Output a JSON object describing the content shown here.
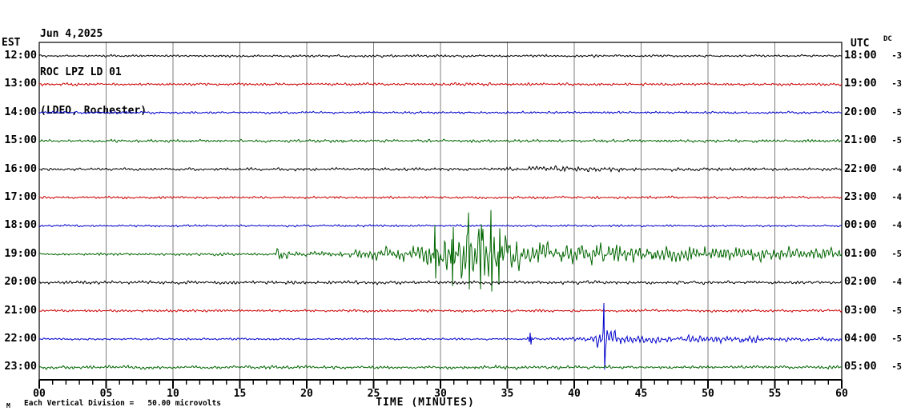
{
  "header": {
    "date": "Jun 4,2025",
    "station": "ROC LPZ LD 01",
    "location": "(LDEO, Rochester)"
  },
  "axes": {
    "left_label": "EST",
    "right_label": "UTC",
    "dc_label": "DC",
    "xlabel": "TIME (MINUTES)"
  },
  "footer": {
    "corner_mark": "M",
    "scale_note": "Each Vertical Division =   50.00 microvolts"
  },
  "colors": {
    "black": "#000000",
    "red": "#cc0000",
    "blue": "#0000cc",
    "green": "#006600",
    "grid": "#7d7d7d",
    "border": "#000000",
    "background": "#ffffff"
  },
  "chart_data": {
    "type": "line",
    "title": "ROC LPZ LD 01 helicorder, Jun 4,2025",
    "xlabel": "TIME (MINUTES)",
    "x_range_minutes": [
      0,
      60
    ],
    "grid_interval_minutes": 5,
    "minor_tick_minutes": 1,
    "tick_major_labels": [
      "00",
      "05",
      "10",
      "15",
      "20",
      "25",
      "30",
      "35",
      "40",
      "45",
      "50",
      "55",
      "60"
    ],
    "vertical_division_microvolts": 50.0,
    "traces": [
      {
        "est": "12:00",
        "utc": "18:00",
        "dc": "-3",
        "color": "black",
        "seed": 11,
        "envelope": [
          [
            0,
            1.8
          ],
          [
            60,
            1.8
          ]
        ],
        "spikes": []
      },
      {
        "est": "13:00",
        "utc": "19:00",
        "dc": "-3",
        "color": "red",
        "seed": 23,
        "envelope": [
          [
            0,
            2.0
          ],
          [
            60,
            2.0
          ]
        ],
        "spikes": []
      },
      {
        "est": "14:00",
        "utc": "20:00",
        "dc": "-5",
        "color": "blue",
        "seed": 37,
        "envelope": [
          [
            0,
            1.7
          ],
          [
            60,
            1.7
          ]
        ],
        "spikes": []
      },
      {
        "est": "15:00",
        "utc": "21:00",
        "dc": "-5",
        "color": "green",
        "seed": 41,
        "envelope": [
          [
            0,
            2.1
          ],
          [
            60,
            2.1
          ]
        ],
        "spikes": []
      },
      {
        "est": "16:00",
        "utc": "22:00",
        "dc": "-4",
        "color": "black",
        "seed": 53,
        "envelope": [
          [
            0,
            1.9
          ],
          [
            34,
            2.2
          ],
          [
            36,
            3.2
          ],
          [
            37.5,
            4.4
          ],
          [
            39,
            4.6
          ],
          [
            40,
            3.8
          ],
          [
            42,
            3.4
          ],
          [
            44,
            3.0
          ],
          [
            46,
            2.6
          ],
          [
            50,
            2.2
          ],
          [
            60,
            2.0
          ]
        ],
        "spikes": []
      },
      {
        "est": "17:00",
        "utc": "23:00",
        "dc": "-4",
        "color": "red",
        "seed": 67,
        "envelope": [
          [
            0,
            1.9
          ],
          [
            60,
            1.9
          ]
        ],
        "spikes": []
      },
      {
        "est": "18:00",
        "utc": "00:00",
        "dc": "-4",
        "color": "blue",
        "seed": 79,
        "envelope": [
          [
            0,
            1.6
          ],
          [
            60,
            1.6
          ]
        ],
        "spikes": []
      },
      {
        "est": "19:00",
        "utc": "01:00",
        "dc": "-5",
        "color": "green",
        "seed": 97,
        "envelope": [
          [
            0,
            2.0
          ],
          [
            17.5,
            2.0
          ],
          [
            17.8,
            8
          ],
          [
            18.3,
            11
          ],
          [
            18.8,
            6
          ],
          [
            19.5,
            4
          ],
          [
            21,
            3.5
          ],
          [
            23,
            4.5
          ],
          [
            24,
            6
          ],
          [
            25,
            8
          ],
          [
            26,
            9
          ],
          [
            27,
            10
          ],
          [
            28,
            13
          ],
          [
            29,
            17
          ],
          [
            29.8,
            26
          ],
          [
            30.5,
            32
          ],
          [
            31.5,
            36
          ],
          [
            32.2,
            42
          ],
          [
            33,
            40
          ],
          [
            33.7,
            45
          ],
          [
            34.2,
            34
          ],
          [
            35,
            24
          ],
          [
            36,
            20
          ],
          [
            37,
            19
          ],
          [
            38,
            17
          ],
          [
            39,
            16
          ],
          [
            40,
            15
          ],
          [
            42,
            16
          ],
          [
            43,
            14
          ],
          [
            45,
            13
          ],
          [
            47,
            12
          ],
          [
            50,
            13
          ],
          [
            52,
            11
          ],
          [
            55,
            10
          ],
          [
            58,
            9
          ],
          [
            60,
            9
          ]
        ],
        "spikes": [
          [
            29.6,
            36
          ],
          [
            30.9,
            -40
          ],
          [
            32.1,
            52
          ],
          [
            33.0,
            -44
          ],
          [
            33.8,
            55
          ],
          [
            34.4,
            -38
          ]
        ]
      },
      {
        "est": "20:00",
        "utc": "02:00",
        "dc": "-4",
        "color": "black",
        "seed": 101,
        "envelope": [
          [
            0,
            2.6
          ],
          [
            10,
            2.4
          ],
          [
            20,
            2.6
          ],
          [
            30,
            2.5
          ],
          [
            40,
            2.4
          ],
          [
            50,
            2.3
          ],
          [
            60,
            2.2
          ]
        ],
        "spikes": []
      },
      {
        "est": "21:00",
        "utc": "03:00",
        "dc": "-5",
        "color": "red",
        "seed": 113,
        "envelope": [
          [
            0,
            1.9
          ],
          [
            60,
            1.9
          ]
        ],
        "spikes": []
      },
      {
        "est": "22:00",
        "utc": "04:00",
        "dc": "-5",
        "color": "blue",
        "seed": 131,
        "envelope": [
          [
            0,
            1.5
          ],
          [
            36.4,
            1.5
          ],
          [
            36.7,
            7
          ],
          [
            37.1,
            2
          ],
          [
            38,
            1.8
          ],
          [
            39.5,
            2.5
          ],
          [
            40.3,
            4
          ],
          [
            41,
            6
          ],
          [
            41.5,
            9
          ],
          [
            42,
            16
          ],
          [
            42.3,
            28
          ],
          [
            42.6,
            14
          ],
          [
            43,
            10
          ],
          [
            43.6,
            8
          ],
          [
            44.5,
            7
          ],
          [
            45.5,
            6
          ],
          [
            47,
            5.5
          ],
          [
            48.5,
            5
          ],
          [
            49.5,
            6.5
          ],
          [
            50.5,
            5
          ],
          [
            52,
            4.5
          ],
          [
            53.4,
            5.5
          ],
          [
            54.5,
            4
          ],
          [
            56,
            3.5
          ],
          [
            58,
            3
          ],
          [
            60,
            3
          ]
        ],
        "spikes": [
          [
            36.7,
            8
          ],
          [
            42.2,
            45
          ]
        ]
      },
      {
        "est": "23:00",
        "utc": "05:00",
        "dc": "-5",
        "color": "green",
        "seed": 149,
        "envelope": [
          [
            0,
            2.4
          ],
          [
            30,
            2.4
          ],
          [
            35,
            2.7
          ],
          [
            40,
            2.5
          ],
          [
            60,
            2.3
          ]
        ],
        "spikes": []
      }
    ]
  }
}
